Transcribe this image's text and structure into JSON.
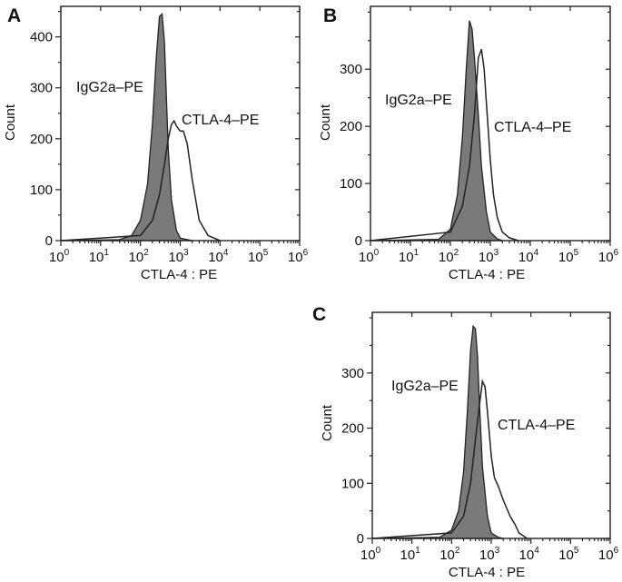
{
  "chart_data": [
    {
      "panel": "A",
      "type": "area",
      "title": "",
      "xlabel": "CTLA-4 : PE",
      "ylabel": "Count",
      "x_scale": "log",
      "xlim": [
        1,
        1000000
      ],
      "ylim": [
        0,
        460
      ],
      "y_ticks": [
        0,
        100,
        200,
        300,
        400
      ],
      "x_ticks": [
        "10",
        "10",
        "10",
        "10",
        "10",
        "10",
        "10"
      ],
      "x_tick_exponents": [
        "0",
        "1",
        "2",
        "3",
        "4",
        "5",
        "6"
      ],
      "series": [
        {
          "name": "IgG2a–PE",
          "style": "filled",
          "x": [
            1,
            30,
            60,
            100,
            150,
            200,
            250,
            300,
            350,
            400,
            450,
            500,
            600,
            800,
            1000,
            2000
          ],
          "y": [
            0,
            2,
            10,
            40,
            110,
            230,
            360,
            440,
            445,
            390,
            280,
            180,
            80,
            20,
            5,
            0
          ]
        },
        {
          "name": "CTLA-4–PE",
          "style": "outline",
          "x": [
            1,
            100,
            200,
            300,
            400,
            500,
            600,
            700,
            800,
            1000,
            1200,
            1500,
            2000,
            3000,
            5000,
            10000
          ],
          "y": [
            0,
            10,
            40,
            90,
            150,
            200,
            228,
            235,
            225,
            215,
            215,
            190,
            120,
            40,
            10,
            0
          ]
        }
      ],
      "labels": [
        "IgG2a–PE",
        "CTLA-4–PE"
      ]
    },
    {
      "panel": "B",
      "type": "area",
      "title": "",
      "xlabel": "CTLA-4 : PE",
      "ylabel": "Count",
      "x_scale": "log",
      "xlim": [
        1,
        1000000
      ],
      "ylim": [
        0,
        410
      ],
      "y_ticks": [
        0,
        100,
        200,
        300
      ],
      "x_ticks": [
        "10",
        "10",
        "10",
        "10",
        "10",
        "10",
        "10"
      ],
      "x_tick_exponents": [
        "0",
        "1",
        "2",
        "3",
        "4",
        "5",
        "6"
      ],
      "series": [
        {
          "name": "IgG2a–PE",
          "style": "filled",
          "x": [
            1,
            50,
            100,
            150,
            200,
            250,
            300,
            350,
            400,
            500,
            600,
            800,
            1000,
            1500,
            2000
          ],
          "y": [
            0,
            2,
            20,
            80,
            180,
            300,
            385,
            370,
            320,
            220,
            130,
            50,
            15,
            3,
            0
          ]
        },
        {
          "name": "CTLA-4–PE",
          "style": "outline",
          "x": [
            1,
            100,
            200,
            300,
            400,
            500,
            600,
            700,
            800,
            1000,
            1200,
            1500,
            2000,
            3000,
            5000
          ],
          "y": [
            0,
            15,
            60,
            130,
            220,
            320,
            335,
            300,
            240,
            140,
            80,
            40,
            15,
            5,
            0
          ]
        }
      ],
      "labels": [
        "IgG2a–PE",
        "CTLA-4–PE"
      ]
    },
    {
      "panel": "C",
      "type": "area",
      "title": "",
      "xlabel": "CTLA-4 : PE",
      "ylabel": "Count",
      "x_scale": "log",
      "xlim": [
        1,
        1000000
      ],
      "ylim": [
        0,
        410
      ],
      "y_ticks": [
        0,
        100,
        200,
        300
      ],
      "x_ticks": [
        "10",
        "10",
        "10",
        "10",
        "10",
        "10",
        "10"
      ],
      "x_tick_exponents": [
        "0",
        "1",
        "2",
        "3",
        "4",
        "5",
        "6"
      ],
      "series": [
        {
          "name": "IgG2a–PE",
          "style": "filled",
          "x": [
            1,
            50,
            100,
            150,
            200,
            250,
            300,
            350,
            400,
            450,
            500,
            600,
            800,
            1000,
            1500,
            2000
          ],
          "y": [
            0,
            2,
            15,
            50,
            120,
            230,
            340,
            385,
            380,
            330,
            250,
            130,
            40,
            10,
            2,
            0
          ]
        },
        {
          "name": "CTLA-4–PE",
          "style": "outline",
          "x": [
            1,
            100,
            200,
            300,
            400,
            500,
            600,
            700,
            800,
            1000,
            1200,
            1500,
            2000,
            3000,
            4000,
            5000,
            8000
          ],
          "y": [
            0,
            10,
            40,
            100,
            180,
            240,
            285,
            275,
            230,
            150,
            110,
            95,
            70,
            40,
            25,
            10,
            0
          ]
        }
      ],
      "labels": [
        "IgG2a–PE",
        "CTLA-4–PE"
      ]
    }
  ],
  "panel_letters": [
    "A",
    "B",
    "C"
  ],
  "colors": {
    "fill": "#7a7a7a",
    "line": "#222222",
    "frame": "#222222"
  }
}
